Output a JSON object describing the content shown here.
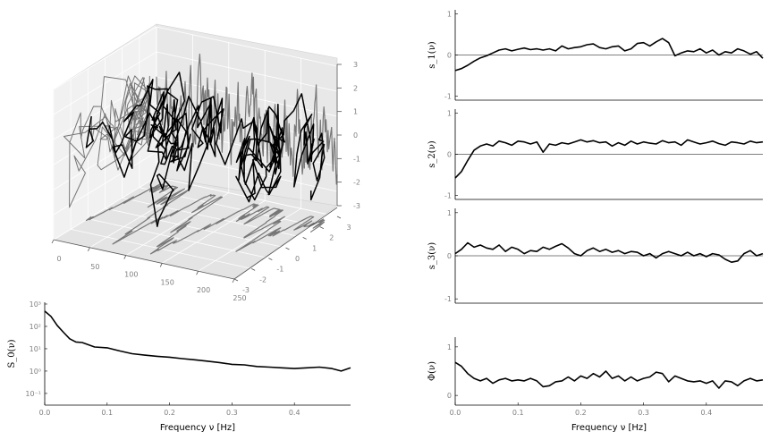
{
  "chart_data": [
    {
      "panel": "3d-trajectory",
      "type": "line",
      "x_ticks": [
        "0",
        "50",
        "100",
        "150",
        "200",
        "250"
      ],
      "y_ticks": [
        "-3",
        "-2",
        "-1",
        "0",
        "1",
        "2",
        "3"
      ],
      "z_ticks": [
        "-3",
        "-2",
        "-1",
        "0",
        "1",
        "2",
        "3"
      ],
      "xlim": [
        0,
        250
      ],
      "ylim": [
        -3,
        3
      ],
      "zlim": [
        -3,
        3
      ],
      "colors": {
        "trajectory": "#000000",
        "projections": "#777777",
        "pane": "#ebebeb"
      }
    },
    {
      "panel": "spectral-density",
      "type": "line",
      "ylabel": "S_0(ν)",
      "xlabel": "Frequency ν [Hz]",
      "yscale": "log",
      "x_ticks": [
        "0.0",
        "0.1",
        "0.2",
        "0.3",
        "0.4"
      ],
      "y_ticks": [
        "10⁻¹",
        "10⁰",
        "10¹",
        "10²",
        "10³"
      ],
      "xlim": [
        0,
        0.49
      ],
      "ylim": [
        0.03,
        1200
      ],
      "x": [
        0.0,
        0.01,
        0.02,
        0.03,
        0.04,
        0.05,
        0.06,
        0.08,
        0.1,
        0.12,
        0.14,
        0.16,
        0.18,
        0.2,
        0.22,
        0.24,
        0.26,
        0.28,
        0.3,
        0.32,
        0.34,
        0.36,
        0.38,
        0.4,
        0.42,
        0.44,
        0.46,
        0.475,
        0.49
      ],
      "y": [
        480,
        280,
        110,
        55,
        28,
        20,
        19,
        12,
        11,
        8,
        6,
        5.2,
        4.6,
        4.2,
        3.6,
        3.2,
        2.8,
        2.4,
        2.0,
        1.9,
        1.6,
        1.5,
        1.4,
        1.3,
        1.4,
        1.5,
        1.3,
        1.0,
        1.4
      ]
    },
    {
      "panel": "s1",
      "type": "line",
      "ylabel": "s_1(ν)",
      "y_ticks": [
        "1",
        "0",
        "-1"
      ],
      "ylim": [
        -1.1,
        1.1
      ],
      "x": [
        0.0,
        0.01,
        0.02,
        0.03,
        0.04,
        0.05,
        0.06,
        0.07,
        0.08,
        0.09,
        0.1,
        0.11,
        0.12,
        0.13,
        0.14,
        0.15,
        0.16,
        0.17,
        0.18,
        0.19,
        0.2,
        0.21,
        0.22,
        0.23,
        0.24,
        0.25,
        0.26,
        0.27,
        0.28,
        0.29,
        0.3,
        0.31,
        0.32,
        0.33,
        0.34,
        0.35,
        0.36,
        0.37,
        0.38,
        0.39,
        0.4,
        0.41,
        0.42,
        0.43,
        0.44,
        0.45,
        0.46,
        0.47,
        0.48,
        0.49
      ],
      "y": [
        -0.38,
        -0.33,
        -0.25,
        -0.15,
        -0.07,
        -0.02,
        0.05,
        0.12,
        0.15,
        0.1,
        0.14,
        0.17,
        0.13,
        0.15,
        0.12,
        0.15,
        0.1,
        0.22,
        0.15,
        0.18,
        0.2,
        0.25,
        0.27,
        0.18,
        0.15,
        0.2,
        0.22,
        0.1,
        0.15,
        0.28,
        0.3,
        0.22,
        0.32,
        0.4,
        0.3,
        -0.02,
        0.05,
        0.1,
        0.08,
        0.15,
        0.05,
        0.12,
        0.0,
        0.08,
        0.05,
        0.15,
        0.1,
        0.02,
        0.08,
        -0.08
      ]
    },
    {
      "panel": "s2",
      "type": "line",
      "ylabel": "s_2(ν)",
      "y_ticks": [
        "1",
        "0",
        "-1"
      ],
      "ylim": [
        -1.1,
        1.1
      ],
      "x": [
        0.0,
        0.01,
        0.02,
        0.03,
        0.04,
        0.05,
        0.06,
        0.07,
        0.08,
        0.09,
        0.1,
        0.11,
        0.12,
        0.13,
        0.14,
        0.15,
        0.16,
        0.17,
        0.18,
        0.19,
        0.2,
        0.21,
        0.22,
        0.23,
        0.24,
        0.25,
        0.26,
        0.27,
        0.28,
        0.29,
        0.3,
        0.31,
        0.32,
        0.33,
        0.34,
        0.35,
        0.36,
        0.37,
        0.38,
        0.39,
        0.4,
        0.41,
        0.42,
        0.43,
        0.44,
        0.45,
        0.46,
        0.47,
        0.48,
        0.49
      ],
      "y": [
        -0.58,
        -0.42,
        -0.15,
        0.1,
        0.2,
        0.25,
        0.2,
        0.32,
        0.28,
        0.22,
        0.32,
        0.3,
        0.25,
        0.3,
        0.05,
        0.25,
        0.22,
        0.28,
        0.25,
        0.3,
        0.35,
        0.3,
        0.33,
        0.28,
        0.3,
        0.2,
        0.28,
        0.22,
        0.32,
        0.25,
        0.3,
        0.27,
        0.25,
        0.33,
        0.28,
        0.3,
        0.22,
        0.35,
        0.3,
        0.25,
        0.28,
        0.32,
        0.26,
        0.22,
        0.3,
        0.28,
        0.25,
        0.32,
        0.28,
        0.3
      ]
    },
    {
      "panel": "s3",
      "type": "line",
      "ylabel": "s_3(ν)",
      "y_ticks": [
        "1",
        "0",
        "-1"
      ],
      "ylim": [
        -1.1,
        1.1
      ],
      "x": [
        0.0,
        0.01,
        0.02,
        0.03,
        0.04,
        0.05,
        0.06,
        0.07,
        0.08,
        0.09,
        0.1,
        0.11,
        0.12,
        0.13,
        0.14,
        0.15,
        0.16,
        0.17,
        0.18,
        0.19,
        0.2,
        0.21,
        0.22,
        0.23,
        0.24,
        0.25,
        0.26,
        0.27,
        0.28,
        0.29,
        0.3,
        0.31,
        0.32,
        0.33,
        0.34,
        0.35,
        0.36,
        0.37,
        0.38,
        0.39,
        0.4,
        0.41,
        0.42,
        0.43,
        0.44,
        0.45,
        0.46,
        0.47,
        0.48,
        0.49
      ],
      "y": [
        0.05,
        0.15,
        0.3,
        0.2,
        0.25,
        0.18,
        0.15,
        0.25,
        0.1,
        0.2,
        0.15,
        0.05,
        0.12,
        0.1,
        0.2,
        0.15,
        0.22,
        0.28,
        0.18,
        0.05,
        0.0,
        0.12,
        0.18,
        0.1,
        0.15,
        0.08,
        0.12,
        0.05,
        0.1,
        0.08,
        0.0,
        0.05,
        -0.05,
        0.05,
        0.1,
        0.05,
        0.0,
        0.08,
        0.0,
        0.05,
        -0.02,
        0.05,
        0.02,
        -0.08,
        -0.15,
        -0.12,
        0.05,
        0.12,
        0.0,
        0.05
      ]
    },
    {
      "panel": "phi",
      "type": "line",
      "ylabel": "Φ(ν)",
      "xlabel": "Frequency ν [Hz]",
      "x_ticks": [
        "0.0",
        "0.1",
        "0.2",
        "0.3",
        "0.4"
      ],
      "y_ticks": [
        "1",
        "0"
      ],
      "xlim": [
        0,
        0.49
      ],
      "ylim": [
        -0.2,
        1.2
      ],
      "x": [
        0.0,
        0.01,
        0.02,
        0.03,
        0.04,
        0.05,
        0.06,
        0.07,
        0.08,
        0.09,
        0.1,
        0.11,
        0.12,
        0.13,
        0.14,
        0.15,
        0.16,
        0.17,
        0.18,
        0.19,
        0.2,
        0.21,
        0.22,
        0.23,
        0.24,
        0.25,
        0.26,
        0.27,
        0.28,
        0.29,
        0.3,
        0.31,
        0.32,
        0.33,
        0.34,
        0.35,
        0.36,
        0.37,
        0.38,
        0.39,
        0.4,
        0.41,
        0.42,
        0.43,
        0.44,
        0.45,
        0.46,
        0.47,
        0.48,
        0.49
      ],
      "y": [
        0.68,
        0.6,
        0.45,
        0.35,
        0.3,
        0.35,
        0.25,
        0.32,
        0.35,
        0.3,
        0.32,
        0.3,
        0.35,
        0.3,
        0.18,
        0.2,
        0.28,
        0.3,
        0.38,
        0.3,
        0.4,
        0.35,
        0.45,
        0.38,
        0.5,
        0.35,
        0.4,
        0.3,
        0.38,
        0.3,
        0.35,
        0.38,
        0.48,
        0.45,
        0.28,
        0.4,
        0.35,
        0.3,
        0.28,
        0.3,
        0.25,
        0.3,
        0.15,
        0.3,
        0.28,
        0.2,
        0.3,
        0.35,
        0.3,
        0.32
      ]
    }
  ]
}
